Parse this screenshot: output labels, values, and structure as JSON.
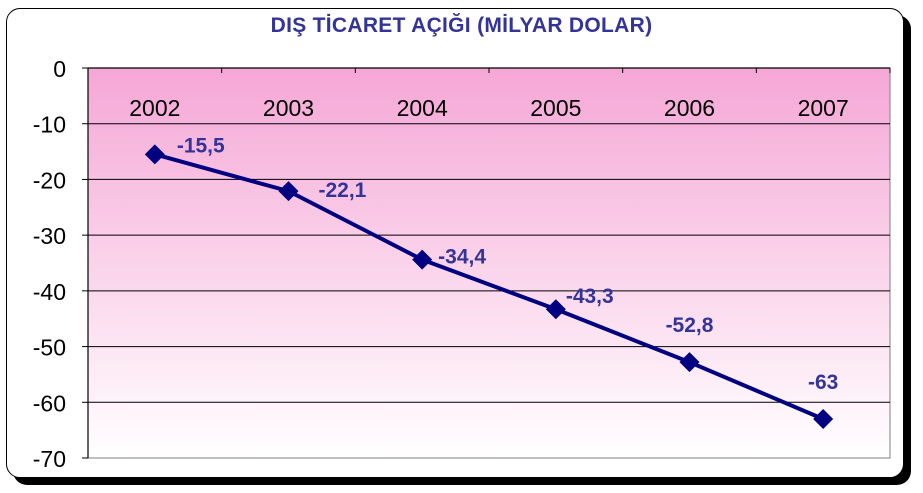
{
  "chart_data": {
    "type": "line",
    "title": "DIŞ TİCARET AÇIĞI (MİLYAR DOLAR)",
    "categories": [
      "2002",
      "2003",
      "2004",
      "2005",
      "2006",
      "2007"
    ],
    "series": [
      {
        "values": [
          -15.5,
          -22.1,
          -34.4,
          -43.3,
          -52.8,
          -63
        ],
        "data_labels": [
          "-15,5",
          "-22,1",
          "-34,4",
          "-43,3",
          "-52,8",
          "-63"
        ],
        "color": "#000080",
        "marker": "diamond"
      }
    ],
    "ylim": [
      -70,
      0
    ],
    "yticks": [
      0,
      -10,
      -20,
      -30,
      -40,
      -50,
      -60,
      -70
    ],
    "ytick_labels": [
      "0",
      "-10",
      "-20",
      "-30",
      "-40",
      "-50",
      "-60",
      "-70"
    ],
    "x_axis_position": "top",
    "grid": true,
    "legend": "none",
    "colors": {
      "plot_background_top": "#f5a7d6",
      "plot_background_bottom": "#ffffff",
      "label_color": "#333399",
      "line_color": "#000080"
    }
  }
}
